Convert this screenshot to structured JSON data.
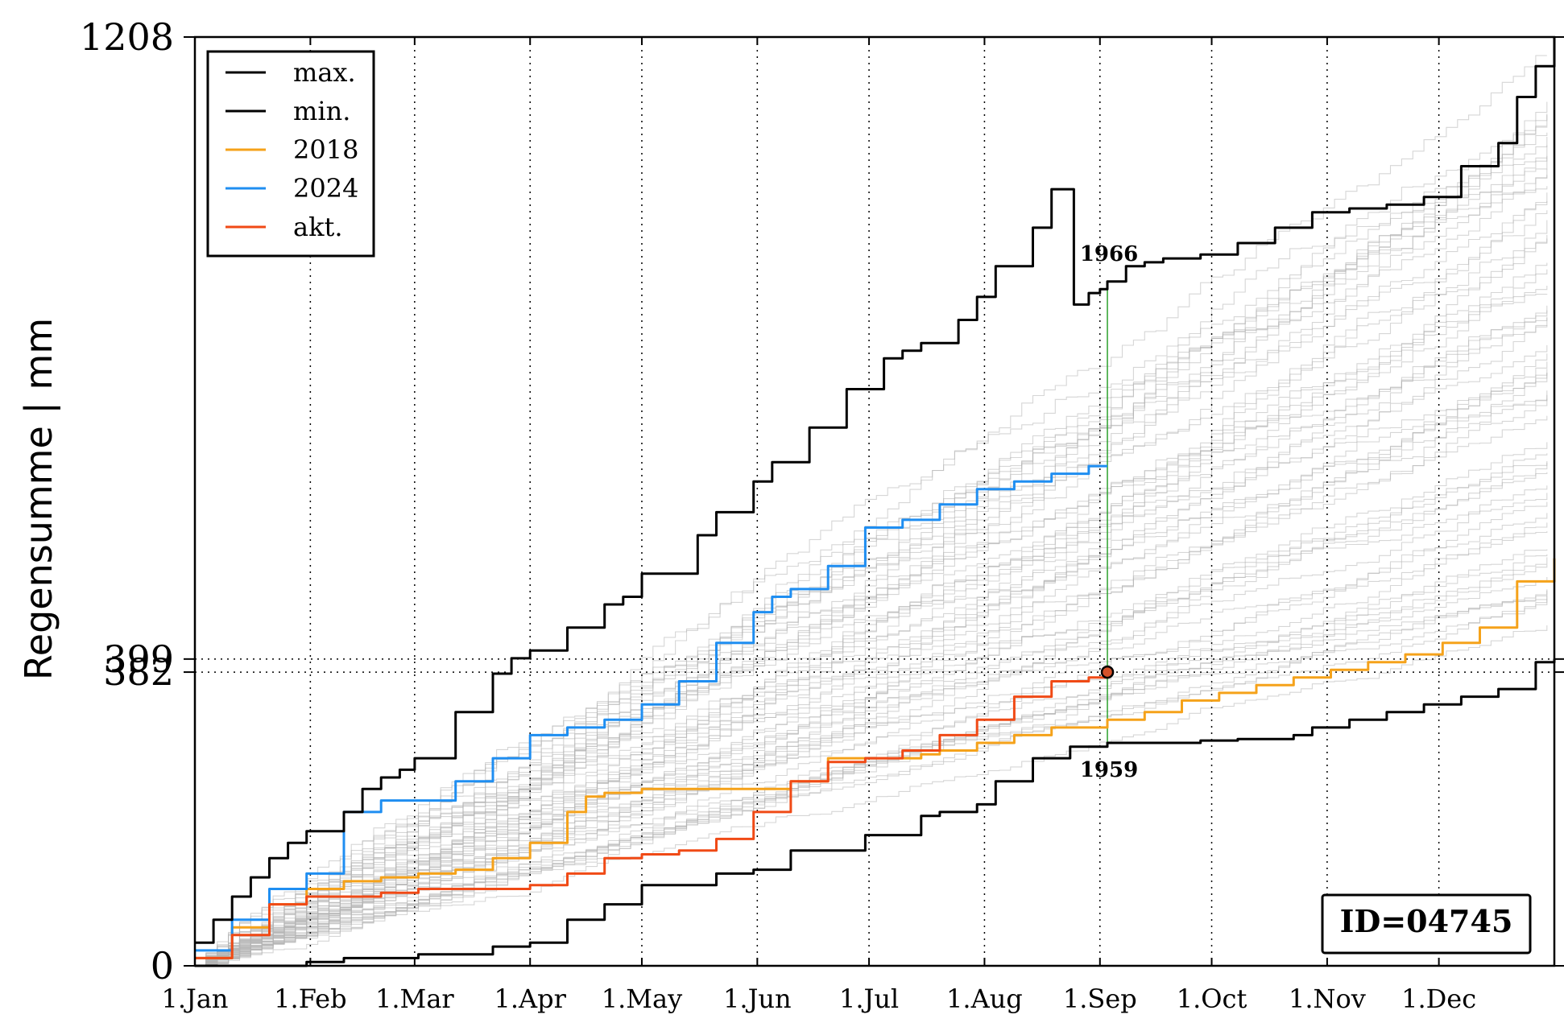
{
  "chart_data": {
    "type": "line",
    "title": "",
    "xlabel": "",
    "ylabel": "Regensumme | mm",
    "ylim": [
      0,
      1208
    ],
    "xlim_day": [
      0,
      365
    ],
    "y_ticks": [
      "0",
      "382",
      "399",
      "1208"
    ],
    "x_ticks": [
      {
        "label": "1.Jan",
        "day": 0
      },
      {
        "label": "1.Feb",
        "day": 31
      },
      {
        "label": "1.Mar",
        "day": 59
      },
      {
        "label": "1.Apr",
        "day": 90
      },
      {
        "label": "1.May",
        "day": 120
      },
      {
        "label": "1.Jun",
        "day": 151
      },
      {
        "label": "1.Jul",
        "day": 181
      },
      {
        "label": "1.Aug",
        "day": 212
      },
      {
        "label": "1.Sep",
        "day": 243
      },
      {
        "label": "1.Oct",
        "day": 273
      },
      {
        "label": "1.Nov",
        "day": 304
      },
      {
        "label": "1.Dec",
        "day": 334
      }
    ],
    "reference_lines": {
      "y_dotted": [
        399,
        382
      ],
      "x_current_day": 245
    },
    "annotations": {
      "max_year": "1966",
      "min_year": "1959",
      "max_at_current_day": 890,
      "min_at_current_day": 290,
      "current_value": 382
    },
    "id_box": "ID=04745",
    "legend": {
      "placement": "top-left",
      "entries": [
        "max.",
        "min.",
        "2018",
        "2024",
        "akt."
      ]
    },
    "grid": "dotted, x and y",
    "colors": {
      "max": "#000000",
      "min": "#000000",
      "2018": "#f5a21a",
      "2024": "#1f8ef1",
      "akt": "#f04a16",
      "history": "#b4b4b4",
      "marker_line": "#2ca02c"
    },
    "series": [
      {
        "name": "max.",
        "x": [
          0,
          5,
          10,
          15,
          20,
          25,
          30,
          40,
          45,
          50,
          55,
          59,
          70,
          80,
          85,
          90,
          100,
          110,
          115,
          120,
          135,
          140,
          150,
          155,
          165,
          175,
          185,
          190,
          195,
          205,
          210,
          215,
          225,
          230,
          236,
          240,
          243,
          245,
          250,
          255,
          260,
          270,
          280,
          290,
          300,
          310,
          320,
          330,
          340,
          350,
          355,
          360,
          365
        ],
        "y": [
          30,
          60,
          90,
          115,
          140,
          160,
          175,
          200,
          230,
          245,
          255,
          270,
          330,
          380,
          400,
          410,
          440,
          470,
          480,
          510,
          560,
          590,
          630,
          655,
          700,
          750,
          790,
          800,
          810,
          840,
          870,
          910,
          960,
          1010,
          860,
          875,
          880,
          890,
          910,
          915,
          920,
          925,
          940,
          960,
          980,
          985,
          990,
          1000,
          1040,
          1070,
          1130,
          1170,
          1208
        ]
      },
      {
        "name": "min.",
        "x": [
          0,
          20,
          30,
          40,
          60,
          80,
          90,
          100,
          110,
          120,
          140,
          150,
          160,
          180,
          195,
          200,
          210,
          215,
          225,
          235,
          245,
          260,
          270,
          280,
          295,
          300,
          310,
          320,
          330,
          340,
          350,
          360,
          365
        ],
        "y": [
          0,
          0,
          5,
          10,
          15,
          25,
          30,
          60,
          80,
          105,
          120,
          125,
          150,
          170,
          195,
          200,
          210,
          240,
          270,
          285,
          290,
          290,
          293,
          295,
          300,
          310,
          320,
          330,
          340,
          350,
          360,
          395,
          399
        ]
      },
      {
        "name": "2018",
        "x": [
          0,
          10,
          20,
          30,
          40,
          50,
          60,
          70,
          80,
          90,
          100,
          105,
          110,
          120,
          130,
          140,
          150,
          160,
          170,
          180,
          190,
          195,
          200,
          210,
          220,
          230,
          245,
          255,
          265,
          275,
          285,
          295,
          305,
          315,
          325,
          335,
          345,
          355,
          365
        ],
        "y": [
          10,
          50,
          80,
          100,
          110,
          115,
          120,
          125,
          140,
          160,
          200,
          220,
          225,
          230,
          230,
          230,
          230,
          240,
          270,
          270,
          270,
          275,
          280,
          290,
          300,
          310,
          320,
          330,
          345,
          355,
          365,
          375,
          385,
          395,
          405,
          420,
          440,
          500,
          530
        ]
      },
      {
        "name": "2024",
        "x": [
          0,
          10,
          20,
          30,
          40,
          50,
          60,
          70,
          80,
          90,
          100,
          110,
          120,
          130,
          140,
          150,
          155,
          160,
          170,
          180,
          190,
          200,
          210,
          220,
          230,
          240,
          245
        ],
        "y": [
          20,
          60,
          100,
          120,
          200,
          215,
          215,
          240,
          270,
          300,
          310,
          320,
          340,
          370,
          420,
          460,
          480,
          490,
          520,
          570,
          580,
          600,
          620,
          630,
          640,
          650,
          650
        ]
      },
      {
        "name": "akt.",
        "x": [
          0,
          10,
          20,
          30,
          40,
          50,
          60,
          70,
          80,
          90,
          100,
          110,
          120,
          130,
          140,
          150,
          160,
          170,
          180,
          190,
          200,
          210,
          220,
          230,
          240,
          245
        ],
        "y": [
          10,
          40,
          80,
          90,
          90,
          95,
          100,
          100,
          100,
          105,
          120,
          140,
          145,
          150,
          165,
          200,
          240,
          265,
          270,
          280,
          300,
          320,
          350,
          370,
          375,
          382
        ]
      }
    ]
  }
}
